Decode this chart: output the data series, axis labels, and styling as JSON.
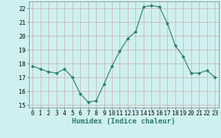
{
  "x": [
    0,
    1,
    2,
    3,
    4,
    5,
    6,
    7,
    8,
    9,
    10,
    11,
    12,
    13,
    14,
    15,
    16,
    17,
    18,
    19,
    20,
    21,
    22,
    23
  ],
  "y": [
    17.8,
    17.6,
    17.4,
    17.3,
    17.6,
    17.0,
    15.8,
    15.2,
    15.3,
    16.5,
    17.8,
    18.9,
    19.8,
    20.3,
    22.1,
    22.2,
    22.1,
    20.9,
    19.3,
    18.5,
    17.3,
    17.3,
    17.5,
    17.0
  ],
  "line_color": "#2e7d6e",
  "marker": "D",
  "marker_size": 2.2,
  "bg_color": "#cff0f0",
  "grid_color": "#c8a8a8",
  "xlabel": "Humidex (Indice chaleur)",
  "xlim": [
    -0.5,
    23.5
  ],
  "ylim": [
    14.8,
    22.5
  ],
  "yticks": [
    15,
    16,
    17,
    18,
    19,
    20,
    21,
    22
  ],
  "xticks": [
    0,
    1,
    2,
    3,
    4,
    5,
    6,
    7,
    8,
    9,
    10,
    11,
    12,
    13,
    14,
    15,
    16,
    17,
    18,
    19,
    20,
    21,
    22,
    23
  ],
  "tick_label_fontsize": 6.0,
  "xlabel_fontsize": 7.5
}
